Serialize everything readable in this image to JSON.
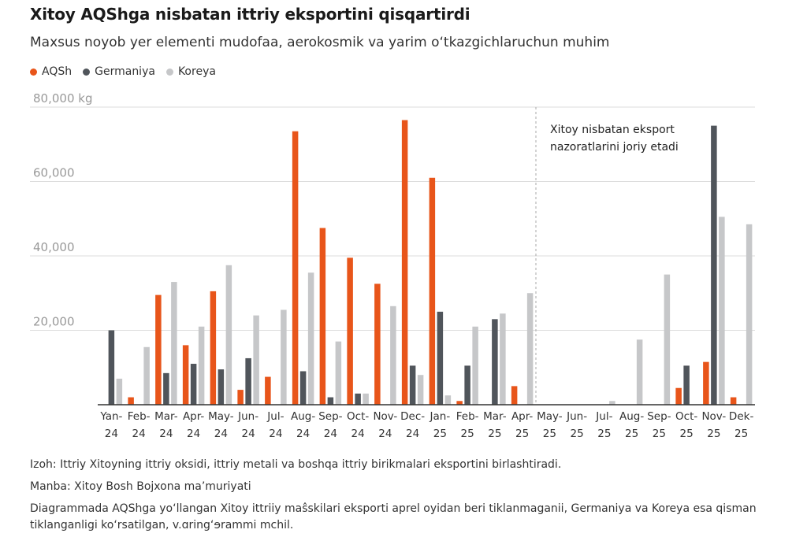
{
  "header": {
    "title": "Xitoy AQShga nisbatan ittriy eksportini qisqartirdi",
    "subtitle": "Maxsus noyob yer elementi mudofaa, aerokosmik va yarim o‘tkazgichlaruchun muhim"
  },
  "colors": {
    "AQSh": "#e8551a",
    "Germaniya": "#50555b",
    "Koreya": "#c6c7c9",
    "grid": "#dddddd",
    "axis": "#333333",
    "tick_text": "#999999"
  },
  "chart_data": {
    "type": "bar",
    "title": "Xitoy AQShga nisbatan ittriy eksportini qisqartirdi",
    "ylim": [
      0,
      80000
    ],
    "yticks": [
      {
        "value": 20000,
        "label": "20,000"
      },
      {
        "value": 40000,
        "label": "40,000"
      },
      {
        "value": 60000,
        "label": "60,000"
      },
      {
        "value": 80000,
        "label": "80,000 kg"
      }
    ],
    "categories": [
      [
        "Yan-",
        "24"
      ],
      [
        "Feb-",
        "24"
      ],
      [
        "Mar-",
        "24"
      ],
      [
        "Apr-",
        "24"
      ],
      [
        "May-",
        "24"
      ],
      [
        "Jun-",
        "24"
      ],
      [
        "Jul-",
        "24"
      ],
      [
        "Aug-",
        "24"
      ],
      [
        "Sep-",
        "24"
      ],
      [
        "Oct-",
        "24"
      ],
      [
        "Nov-",
        "24"
      ],
      [
        "Dec-",
        "24"
      ],
      [
        "Jan-",
        "25"
      ],
      [
        "Feb-",
        "25"
      ],
      [
        "Mar-",
        "25"
      ],
      [
        "Apr-",
        "25"
      ],
      [
        "May-",
        "25"
      ],
      [
        "Jun-",
        "25"
      ],
      [
        "Jul-",
        "25"
      ],
      [
        "Aug-",
        "25"
      ],
      [
        "Sep-",
        "25"
      ],
      [
        "Oct-",
        "25"
      ],
      [
        "Nov-",
        "25"
      ],
      [
        "Dek-",
        "25"
      ]
    ],
    "series": [
      {
        "name": "AQSh",
        "values": [
          0,
          2000,
          29500,
          16000,
          30500,
          4000,
          7500,
          73500,
          47500,
          39500,
          32500,
          76500,
          61000,
          1000,
          0,
          5000,
          0,
          0,
          0,
          0,
          0,
          4500,
          11500,
          2000
        ]
      },
      {
        "name": "Germaniya",
        "values": [
          20000,
          0,
          8500,
          11000,
          9500,
          12500,
          0,
          9000,
          2000,
          3000,
          0,
          10500,
          25000,
          10500,
          23000,
          0,
          0,
          0,
          0,
          0,
          0,
          10500,
          75000,
          0
        ]
      },
      {
        "name": "Koreya",
        "values": [
          7000,
          15500,
          33000,
          21000,
          37500,
          24000,
          25500,
          35500,
          17000,
          3000,
          26500,
          8000,
          2500,
          21000,
          24500,
          30000,
          0,
          0,
          1000,
          17500,
          35000,
          0,
          50500,
          48500
        ]
      }
    ],
    "annotation": {
      "lines": [
        "Xitoy nisbatan eksport",
        "nazoratlarini joriy etadi"
      ],
      "after_category_index": 15
    },
    "legend_position": "top-left"
  },
  "notes": {
    "izoh": "Izoh: Ittriy Xitoyning ittriy oksidi, ittriy metali va boshqa ittriy birikmalari eksportini birlashtiradi.",
    "manba": "Manba: Xitoy Bosh Bojxona ma’muriyati",
    "description": "Diagrammada AQShga yo‘llangan Xitoy ittriiy maŝskilari eksporti aprel oyidan beri tiklanmaganii, Germaniya va Koreya esa qisman tiklanganligi ko‘rsatilgan, v.ɑring‘ɘrammi mchil."
  }
}
